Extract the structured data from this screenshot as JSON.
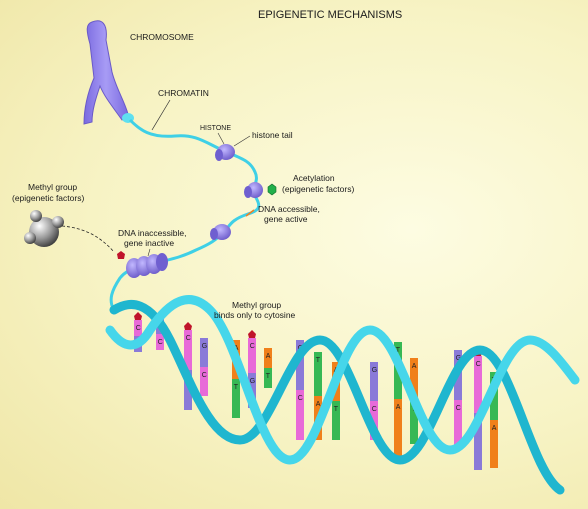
{
  "title": "EPIGENETIC MECHANISMS",
  "labels": {
    "chromosome": "CHROMOSOME",
    "chromatin": "CHROMATIN",
    "histone": "HISTONE",
    "histone_tail": "histone tail",
    "acetylation_1": "Acetylation",
    "acetylation_2": "(epigenetic factors)",
    "dna_accessible_1": "DNA accessible,",
    "dna_accessible_2": "gene active",
    "methyl_group_1": "Methyl group",
    "methyl_group_2": "(epigenetic factors)",
    "dna_inaccessible_1": "DNA inaccessible,",
    "dna_inaccessible_2": "gene inactive",
    "methyl_binds_1": "Methyl group",
    "methyl_binds_2": "binds only to cytosine"
  },
  "bases": [
    "C",
    "G",
    "C",
    "G",
    "A",
    "C",
    "A",
    "G",
    "T",
    "A",
    "G",
    "T",
    "A",
    "G",
    "C",
    "T",
    "G",
    "C",
    "A",
    "T",
    "C",
    "G",
    "A",
    "G"
  ],
  "colors": {
    "chromosome": "#8f7fe6",
    "dna_strand": "#3fd0e6",
    "histone": "#8a78e0",
    "acetyl": "#22b04a",
    "methyl": "#c0142a",
    "cytosine": "#e86ad8",
    "guanine": "#8a7ad8",
    "adenine": "#f0801a",
    "thymine": "#37b854"
  }
}
